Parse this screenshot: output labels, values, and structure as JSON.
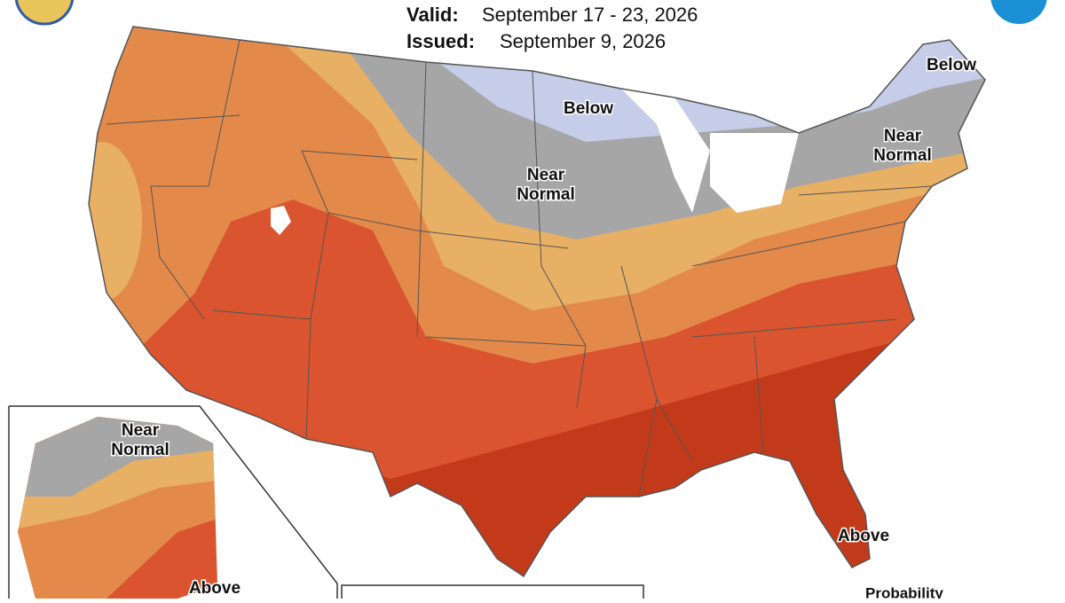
{
  "header": {
    "valid_label": "Valid:",
    "valid": "September 17 - 23, 2026",
    "issued_label": "Issued:",
    "issued": "September 9, 2026"
  },
  "labels": [
    {
      "lines": [
        "Below"
      ]
    },
    {
      "lines": [
        "Below"
      ]
    },
    {
      "lines": [
        "Near",
        "Normal"
      ]
    },
    {
      "lines": [
        "Near",
        "Normal"
      ]
    },
    {
      "lines": [
        "Near",
        "Normal"
      ]
    },
    {
      "lines": [
        "Above"
      ]
    },
    {
      "lines": [
        "Above"
      ]
    }
  ],
  "legend": {
    "title": "Probability"
  }
}
